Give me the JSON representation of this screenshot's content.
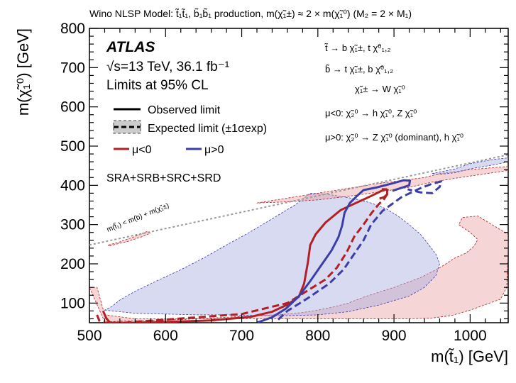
{
  "chart_data": {
    "type": "line",
    "title": "Wino NLSP Model: t̃₁t̃₁, b̃₁b̃₁ production, m(χ̃₁±) ≈ 2 × m(χ̃₁⁰) (M₂ = 2 × M₁)",
    "xlabel": "m(t̃₁) [GeV]",
    "ylabel": "m(χ̃₁⁰) [GeV]",
    "xlim": [
      500,
      1050
    ],
    "ylim": [
      50,
      800
    ],
    "xticks": [
      "500",
      "600",
      "700",
      "800",
      "900",
      "1000"
    ],
    "yticks": [
      "100",
      "200",
      "300",
      "400",
      "500",
      "600",
      "700",
      "800"
    ],
    "grid": false,
    "legend_position": "top-left",
    "texts": {
      "atlas": "ATLAS",
      "energy": "√s=13 TeV, 36.1 fb⁻¹",
      "cl": "Limits at 95% CL",
      "obs": "Observed limit",
      "exp": "Expected limit (±1σexp)",
      "mu_neg": "μ<0",
      "mu_pos": "μ>0",
      "regions": "SRA+SRB+SRC+SRD",
      "kin": "m(t̃₁) < m(b) + m(χ̃₁±)",
      "decay1": "t̃ → b χ̃₁±, t χ̃⁰₁,₂",
      "decay2": "b̃ → t χ̃₁±, b χ̃⁰₁,₂",
      "decay3": "χ̃₁± → W χ̃₁⁰",
      "decay4": "μ<0:  χ̃₂⁰ → h χ̃₁⁰, Z χ̃₁⁰",
      "decay5": "μ>0:  χ̃₂⁰ → Z χ̃₁⁰ (dominant), h χ̃₁⁰"
    },
    "colors": {
      "mu_neg": "#b22026",
      "mu_pos": "#3c3ea8",
      "band_neg": "#e79a9a",
      "band_pos": "#a8aee2",
      "kin": "#999999"
    },
    "series": [
      {
        "name": "μ<0",
        "line": "observed",
        "x": [
          518,
          522,
          527,
          555,
          600,
          660,
          712,
          740,
          760,
          775,
          782,
          787,
          790,
          797,
          810,
          830,
          850,
          870,
          888,
          891,
          891,
          887,
          881
        ],
        "y": [
          80,
          62,
          50,
          50,
          52,
          56,
          65,
          78,
          96,
          116,
          150,
          205,
          248,
          275,
          305,
          337,
          355,
          373,
          390,
          388,
          377,
          370,
          366
        ]
      },
      {
        "name": "μ<0",
        "line": "expected",
        "x": [
          510,
          513,
          517,
          545,
          600,
          700,
          760,
          790,
          810,
          825,
          838,
          848,
          860,
          870,
          880,
          887,
          891,
          893,
          890,
          882
        ],
        "y": [
          70,
          55,
          50,
          50,
          58,
          72,
          100,
          136,
          160,
          190,
          230,
          270,
          300,
          328,
          352,
          365,
          377,
          386,
          390,
          390
        ]
      },
      {
        "name": "μ>0",
        "line": "observed",
        "x": [
          720,
          740,
          758,
          775,
          790,
          805,
          818,
          827,
          832,
          835,
          842,
          852,
          860,
          878,
          898,
          913,
          921,
          920,
          909,
          898
        ],
        "y": [
          50,
          64,
          86,
          117,
          156,
          198,
          234,
          268,
          298,
          330,
          355,
          374,
          388,
          395,
          405,
          413,
          412,
          400,
          393,
          386
        ]
      },
      {
        "name": "μ>0",
        "line": "expected",
        "x": [
          748,
          760,
          788,
          815,
          834,
          848,
          860,
          870,
          885,
          910,
          935,
          950,
          962,
          960,
          955,
          950,
          935,
          918
        ],
        "y": [
          58,
          80,
          114,
          150,
          186,
          226,
          260,
          300,
          335,
          370,
          393,
          404,
          410,
          396,
          388,
          380,
          382,
          390
        ]
      }
    ],
    "bands": [
      {
        "name": "μ<0 ±1σexp",
        "x": [
          500,
          510,
          520,
          560,
          600,
          640,
          680,
          720,
          760,
          800,
          840,
          880,
          920,
          950,
          975,
          1000,
          1020,
          1040,
          1048,
          1050,
          1050,
          1010,
          990,
          985,
          1000,
          1010,
          1005,
          995,
          980,
          960,
          935,
          900,
          860,
          840,
          820,
          800,
          780,
          760,
          740,
          720,
          700,
          680,
          660,
          640,
          620,
          600,
          580,
          560,
          540,
          520
        ],
        "y": [
          140,
          140,
          70,
          60,
          60,
          60,
          60,
          60,
          60,
          60,
          60,
          60,
          60,
          62,
          68,
          82,
          96,
          110,
          140,
          235,
          275,
          322,
          318,
          300,
          280,
          262,
          245,
          228,
          215,
          190,
          165,
          140,
          115,
          100,
          90,
          82,
          76,
          72,
          70,
          68,
          66,
          64,
          62,
          60,
          58,
          57,
          56,
          55,
          54,
          52
        ]
      },
      {
        "name": "μ>0 ±1σexp",
        "x": [
          520,
          560,
          600,
          640,
          680,
          720,
          760,
          800,
          840,
          880,
          920,
          940,
          955,
          960,
          955,
          945,
          935,
          920,
          905,
          890,
          870,
          850,
          830,
          810,
          790,
          770,
          740,
          710,
          680,
          650,
          620,
          590,
          560,
          540,
          530
        ],
        "y": [
          82,
          74,
          72,
          70,
          70,
          68,
          68,
          70,
          78,
          95,
          118,
          140,
          170,
          200,
          225,
          250,
          275,
          300,
          322,
          340,
          355,
          365,
          372,
          378,
          380,
          350,
          315,
          280,
          248,
          215,
          185,
          158,
          130,
          108,
          92
        ]
      },
      {
        "name": "μ<0 upper band",
        "x": [
          720,
          800,
          880,
          940,
          960,
          1000,
          1030,
          1050,
          1050,
          980,
          950,
          920,
          880,
          840,
          800,
          760,
          720
        ],
        "y": [
          355,
          380,
          405,
          420,
          430,
          440,
          445,
          448,
          438,
          418,
          408,
          395,
          383,
          372,
          363,
          358,
          355
        ]
      },
      {
        "name": "μ>0 upper band",
        "x": [
          950,
          980,
          1000,
          1030,
          1050,
          1050,
          1030,
          1000,
          980,
          960
        ],
        "y": [
          430,
          442,
          455,
          466,
          470,
          460,
          452,
          442,
          432,
          428
        ]
      },
      {
        "name": "small island",
        "x": [
          525,
          540,
          560,
          575,
          580,
          570,
          550,
          535,
          525
        ],
        "y": [
          248,
          256,
          270,
          282,
          278,
          270,
          257,
          250,
          245
        ]
      }
    ],
    "kinematic_limit": {
      "x": [
        500,
        1050
      ],
      "y": [
        248,
        478
      ]
    }
  }
}
